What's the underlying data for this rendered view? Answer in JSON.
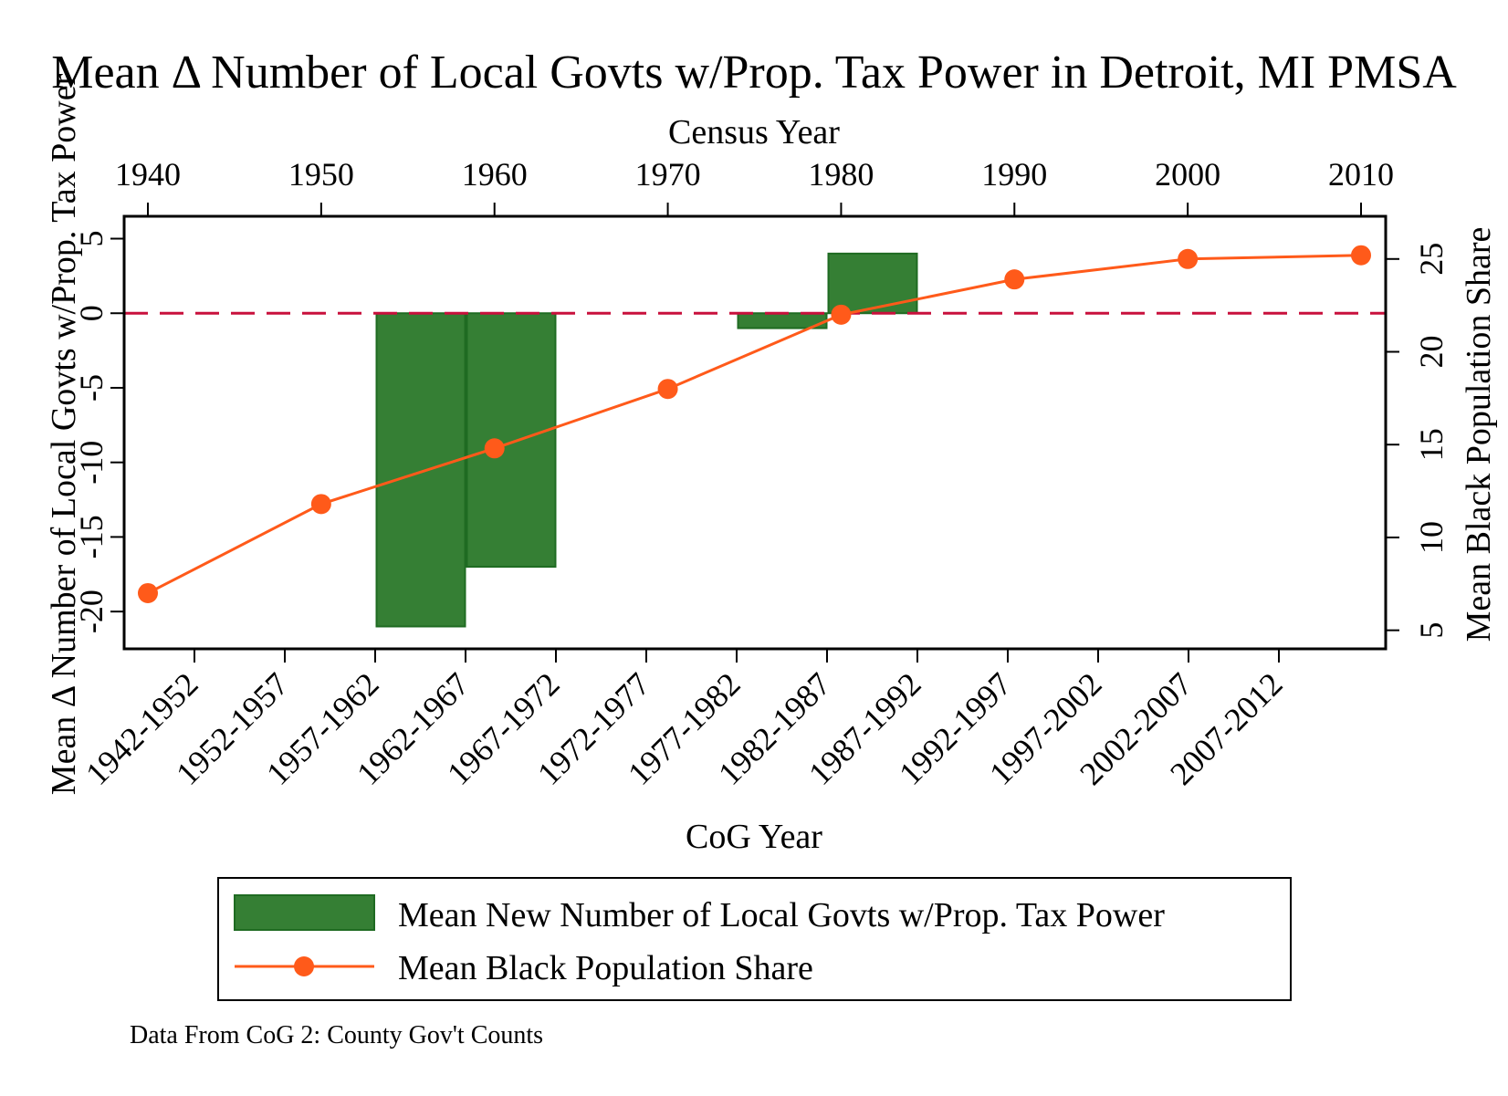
{
  "chart_data": {
    "type": "bar+line",
    "title": "Mean Δ Number of Local Govts w/Prop. Tax Power in Detroit, MI PMSA",
    "top_axis": {
      "label": "Census Year",
      "ticks": [
        1940,
        1950,
        1960,
        1970,
        1980,
        1990,
        2000,
        2010
      ],
      "range": [
        1940,
        2010
      ]
    },
    "bottom_axis": {
      "label": "CoG Year",
      "categories": [
        "1942-1952",
        "1952-1957",
        "1957-1962",
        "1962-1967",
        "1967-1972",
        "1972-1977",
        "1977-1982",
        "1982-1987",
        "1987-1992",
        "1992-1997",
        "1997-2002",
        "2002-2007",
        "2007-2012"
      ]
    },
    "left_axis": {
      "label": "Mean Δ Number of Local Govts w/Prop. Tax Power",
      "ticks": [
        -20,
        -15,
        -10,
        -5,
        0,
        5
      ],
      "range": [
        -22.5,
        6.5
      ]
    },
    "right_axis": {
      "label": "Mean Black Population Share",
      "ticks": [
        5,
        10,
        15,
        20,
        25
      ],
      "range": [
        4,
        27.3
      ]
    },
    "reference_line": {
      "axis": "left",
      "value": 0,
      "style": "dashed",
      "color": "#c8103c"
    },
    "series": [
      {
        "name": "Mean New Number of Local Govts w/Prop. Tax Power",
        "type": "bar",
        "axis": "left",
        "color": "#357f34",
        "edge_color": "#1f6b22",
        "bars": [
          {
            "category": "1962-1967",
            "value": -21
          },
          {
            "category": "1967-1972",
            "value": -17
          },
          {
            "category": "1982-1987",
            "value": -1
          },
          {
            "category": "1987-1992",
            "value": 4
          }
        ]
      },
      {
        "name": "Mean Black Population Share",
        "type": "line",
        "axis": "right",
        "color": "#ff5a1a",
        "points": [
          {
            "x": 1940,
            "y": 7.0
          },
          {
            "x": 1950,
            "y": 11.8
          },
          {
            "x": 1960,
            "y": 14.8
          },
          {
            "x": 1970,
            "y": 18.0
          },
          {
            "x": 1980,
            "y": 22.0
          },
          {
            "x": 1990,
            "y": 23.9
          },
          {
            "x": 2000,
            "y": 25.0
          },
          {
            "x": 2010,
            "y": 25.2
          }
        ]
      }
    ],
    "legend": {
      "placement": "bottom",
      "entries": [
        "Mean New Number of Local Govts w/Prop. Tax Power",
        "Mean Black Population Share"
      ]
    },
    "note": "Data From CoG 2: County Gov't Counts"
  }
}
